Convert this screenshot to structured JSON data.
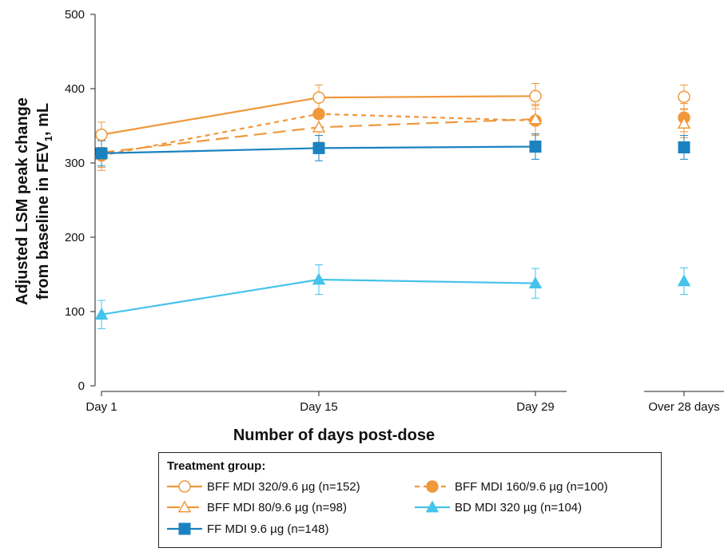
{
  "chart_data": {
    "type": "line",
    "title": "",
    "xlabel": "Number of days post-dose",
    "ylabel_line1": "Adjusted LSM peak change",
    "ylabel_line2_pre": "from baseline in FEV",
    "ylabel_line2_sub": "1",
    "ylabel_line2_post": ", mL",
    "ylim": [
      0,
      500
    ],
    "yticks": [
      "0",
      "100",
      "200",
      "300",
      "400",
      "500"
    ],
    "categories": [
      "Day 1",
      "Day 15",
      "Day 29"
    ],
    "overall_category": "Over 28 days",
    "grid": false,
    "legend_position": "bottom",
    "legend_title": "Treatment group:",
    "series": [
      {
        "name": "BFF MDI 320/9.6 µg (n=152)",
        "color": "#f0983c",
        "marker": "circle-open",
        "dash": "solid",
        "values": [
          338,
          388,
          390
        ],
        "errors": [
          17,
          17,
          17
        ],
        "overall": 389,
        "overall_error": 16
      },
      {
        "name": "BFF MDI 160/9.6 µg (n=100)",
        "color": "#f0983c",
        "marker": "circle-filled",
        "dash": "short",
        "values": [
          310,
          366,
          357
        ],
        "errors": [
          20,
          20,
          20
        ],
        "overall": 361,
        "overall_error": 19
      },
      {
        "name": "BFF MDI 80/9.6 µg (n=98)",
        "color": "#f0983c",
        "marker": "triangle-open",
        "dash": "long",
        "values": [
          314,
          348,
          359
        ],
        "errors": [
          20,
          20,
          20
        ],
        "overall": 353,
        "overall_error": 19
      },
      {
        "name": "BD MDI 320 µg (n=104)",
        "color": "#45c3eb",
        "marker": "triangle-filled",
        "dash": "solid",
        "values": [
          96,
          143,
          138
        ],
        "errors": [
          19,
          20,
          20
        ],
        "overall": 141,
        "overall_error": 18
      },
      {
        "name": "FF MDI 9.6 µg (n=148)",
        "color": "#1b82c0",
        "marker": "square-filled",
        "dash": "solid",
        "values": [
          313,
          320,
          322
        ],
        "errors": [
          17,
          17,
          17
        ],
        "overall": 321,
        "overall_error": 16
      }
    ]
  }
}
